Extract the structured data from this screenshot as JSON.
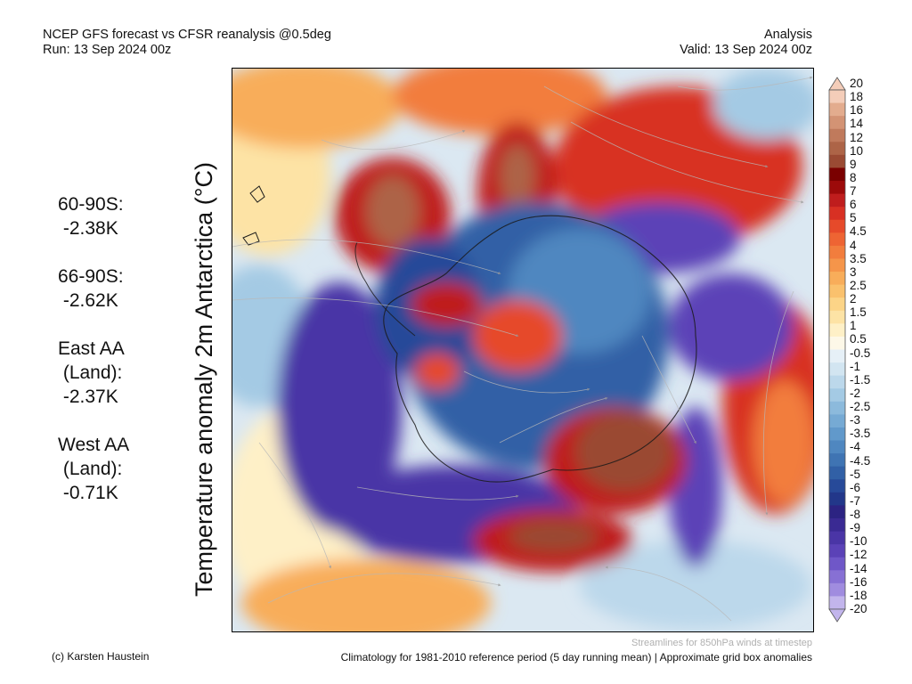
{
  "header": {
    "title_line1": "NCEP GFS forecast vs CFSR reanalysis @0.5deg",
    "title_line2": "Run: 13 Sep 2024 00z",
    "right_line1": "Analysis",
    "right_line2": "Valid: 13 Sep 2024 00z"
  },
  "side_stats": [
    {
      "label": "60-90S:",
      "value": " -2.38K"
    },
    {
      "label": "66-90S:",
      "value": " -2.62K"
    },
    {
      "label": "East AA\n (Land):",
      "value": " -2.37K"
    },
    {
      "label": "West AA\n (Land):",
      "value": " -0.71K"
    }
  ],
  "map": {
    "ylabel": "Temperature anomaly 2m Antarctica (°C)",
    "projection": "south-polar-stereographic",
    "feature_icons": [
      "antarctica-coastline",
      "streamline-arrows"
    ]
  },
  "colorbar": {
    "ticks": [
      "20",
      "18",
      "16",
      "14",
      "12",
      "10",
      "9",
      "8",
      "7",
      "6",
      "5",
      "4.5",
      "4",
      "3.5",
      "3",
      "2.5",
      "2",
      "1.5",
      "1",
      "0.5",
      "-0.5",
      "-1",
      "-1.5",
      "-2",
      "-2.5",
      "-3",
      "-3.5",
      "-4",
      "-4.5",
      "-5",
      "-6",
      "-7",
      "-8",
      "-9",
      "-10",
      "-12",
      "-14",
      "-16",
      "-18",
      "-20"
    ],
    "colors": [
      "#f4cdb9",
      "#e3ac8e",
      "#d39374",
      "#c07a5c",
      "#ad6447",
      "#9a4a33",
      "#7a0000",
      "#9c0a0a",
      "#bf1d1d",
      "#d83023",
      "#e64a2a",
      "#ee6433",
      "#f27d3d",
      "#f5954a",
      "#f8ad5a",
      "#fac16d",
      "#fcd487",
      "#fde3a5",
      "#fef0c7",
      "#fdf8e8",
      "#e6f0f7",
      "#d2e5f1",
      "#bcd8eb",
      "#a4cae4",
      "#8cbadc",
      "#76aad4",
      "#6199cb",
      "#4f87c0",
      "#3f74b3",
      "#3160a6",
      "#274a99",
      "#22378a",
      "#2c2382",
      "#3a2a93",
      "#4a35a6",
      "#5b42b7",
      "#6f57c8",
      "#8770d4",
      "#a08cdf",
      "#c2b5ec"
    ]
  },
  "footer": {
    "credit": "(c) Karsten Haustein",
    "note": "Streamlines for 850hPa winds at timestep",
    "climatology": "Climatology for 1981-2010 reference period (5 day running mean) | Approximate grid box anomalies"
  }
}
